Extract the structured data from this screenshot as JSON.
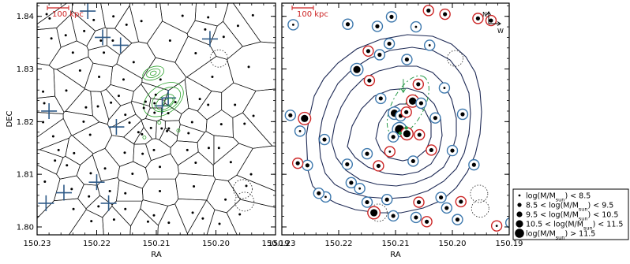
{
  "chart_data": [
    {
      "type": "scatter",
      "panel": "left",
      "xlabel": "RA",
      "ylabel": "DEC",
      "xlim": [
        150.23,
        150.19
      ],
      "ylim": [
        1.7985,
        1.8425
      ],
      "xticks": [
        "150.23",
        "150.22",
        "150.21",
        "150.20",
        "150.19"
      ],
      "yticks": [
        "1.80",
        "1.81",
        "1.82",
        "1.83",
        "1.84"
      ],
      "scalebar": "100 kpc",
      "colors": {
        "frame": "#000000",
        "crosses": "#2e5a87",
        "contours": "#2aa02a",
        "scalebar": "#cc2222",
        "dotted": "#333333"
      },
      "points": [
        [
          150.2284,
          1.8404
        ],
        [
          150.2279,
          1.8396
        ],
        [
          150.2221,
          1.8372
        ],
        [
          150.2205,
          1.8393
        ],
        [
          150.2172,
          1.84
        ],
        [
          150.215,
          1.8384
        ],
        [
          150.2125,
          1.8391
        ],
        [
          150.2056,
          1.8401
        ],
        [
          150.2013,
          1.8398
        ],
        [
          150.1963,
          1.8382
        ],
        [
          150.1938,
          1.8402
        ],
        [
          150.2276,
          1.8358
        ],
        [
          150.2252,
          1.8364
        ],
        [
          150.2193,
          1.8354
        ],
        [
          150.2173,
          1.8354
        ],
        [
          150.2077,
          1.8354
        ],
        [
          150.2018,
          1.8375
        ],
        [
          150.1987,
          1.8361
        ],
        [
          150.224,
          1.8331
        ],
        [
          150.2188,
          1.8331
        ],
        [
          150.2138,
          1.8313
        ],
        [
          150.2034,
          1.833
        ],
        [
          150.1945,
          1.8304
        ],
        [
          150.2228,
          1.8297
        ],
        [
          150.2196,
          1.8285
        ],
        [
          150.2155,
          1.828
        ],
        [
          150.2093,
          1.828
        ],
        [
          150.2101,
          1.8251
        ],
        [
          150.2006,
          1.8285
        ],
        [
          150.229,
          1.8257
        ],
        [
          150.2251,
          1.8259
        ],
        [
          150.2163,
          1.8249
        ],
        [
          150.2118,
          1.8238
        ],
        [
          150.2103,
          1.8235
        ],
        [
          150.2068,
          1.8237
        ],
        [
          150.2027,
          1.8243
        ],
        [
          150.2288,
          1.8235
        ],
        [
          150.2218,
          1.8227
        ],
        [
          150.2198,
          1.8229
        ],
        [
          150.2176,
          1.8236
        ],
        [
          150.2152,
          1.8213
        ],
        [
          150.2121,
          1.8226
        ],
        [
          150.2103,
          1.8217
        ],
        [
          150.208,
          1.8216
        ],
        [
          150.2013,
          1.8232
        ],
        [
          150.1968,
          1.8232
        ],
        [
          150.1937,
          1.8211
        ],
        [
          150.229,
          1.8199
        ],
        [
          150.2222,
          1.82
        ],
        [
          150.2145,
          1.8198
        ],
        [
          150.2109,
          1.8188
        ],
        [
          150.2091,
          1.8187
        ],
        [
          150.2079,
          1.8187
        ],
        [
          150.204,
          1.8199
        ],
        [
          150.1991,
          1.8195
        ],
        [
          150.1952,
          1.8196
        ],
        [
          150.2273,
          1.8172
        ],
        [
          150.2211,
          1.8175
        ],
        [
          150.213,
          1.818
        ],
        [
          150.2124,
          1.8176
        ],
        [
          150.2082,
          1.8182
        ],
        [
          150.2046,
          1.8178
        ],
        [
          150.2264,
          1.8146
        ],
        [
          150.2238,
          1.814
        ],
        [
          150.2153,
          1.8141
        ],
        [
          150.2123,
          1.8139
        ],
        [
          150.2104,
          1.8146
        ],
        [
          150.2048,
          1.8146
        ],
        [
          150.2012,
          1.815
        ],
        [
          150.1995,
          1.815
        ],
        [
          150.227,
          1.8126
        ],
        [
          150.225,
          1.8117
        ],
        [
          150.221,
          1.8102
        ],
        [
          150.2186,
          1.8111
        ],
        [
          150.214,
          1.8101
        ],
        [
          150.2094,
          1.8114
        ],
        [
          150.2034,
          1.8122
        ],
        [
          150.1975,
          1.8123
        ],
        [
          150.1941,
          1.81
        ],
        [
          150.2287,
          1.8086
        ],
        [
          150.2242,
          1.8072
        ],
        [
          150.2213,
          1.8058
        ],
        [
          150.2178,
          1.8068
        ],
        [
          150.2152,
          1.8064
        ],
        [
          150.2094,
          1.8068
        ],
        [
          150.2037,
          1.8077
        ],
        [
          150.1984,
          1.8052
        ],
        [
          150.1949,
          1.8078
        ],
        [
          150.2239,
          1.8034
        ],
        [
          150.2197,
          1.8039
        ],
        [
          150.2152,
          1.8034
        ],
        [
          150.2104,
          1.8022
        ],
        [
          150.2079,
          1.8008
        ],
        [
          150.2039,
          1.8027
        ],
        [
          150.2022,
          1.8016
        ],
        [
          150.196,
          1.8024
        ],
        [
          150.2209,
          1.8011
        ],
        [
          150.2171,
          1.8014
        ],
        [
          150.2114,
          1.801
        ],
        [
          150.1994,
          1.8006
        ]
      ],
      "big_crosses": [
        [
          150.2215,
          1.841
        ],
        [
          150.219,
          1.836
        ],
        [
          150.216,
          1.8345
        ],
        [
          150.201,
          1.8357
        ],
        [
          150.228,
          1.822
        ],
        [
          150.2167,
          1.819
        ],
        [
          150.209,
          1.823
        ],
        [
          150.208,
          1.8245
        ],
        [
          150.2255,
          1.8065
        ],
        [
          150.22,
          1.8085
        ],
        [
          150.218,
          1.8045
        ],
        [
          150.2285,
          1.8045
        ]
      ],
      "dotted_circles": [
        [
          150.1995,
          1.832
        ],
        [
          150.1955,
          1.8072
        ],
        [
          150.1952,
          1.8048
        ]
      ]
    },
    {
      "type": "scatter",
      "panel": "right",
      "xlabel": "RA",
      "ylabel": "",
      "xlim": [
        150.23,
        150.19
      ],
      "ylim": [
        1.7985,
        1.8425
      ],
      "xticks": [
        "150.23",
        "150.22",
        "150.21",
        "150.20",
        "150.19"
      ],
      "scalebar": "100 kpc",
      "compass": {
        "north": "N",
        "west": "W"
      },
      "colors": {
        "frame": "#000000",
        "blue_ring": "#3d78ad",
        "red_ring": "#cc2424",
        "contours": "#1e2a55",
        "green": "#2a9a4a",
        "scalebar": "#cc2222"
      },
      "galaxies": [
        {
          "ra": 150.2042,
          "dec": 1.8411,
          "ring": "red",
          "mass": 9.0
        },
        {
          "ra": 150.2013,
          "dec": 1.8404,
          "ring": "red",
          "mass": 9.0
        },
        {
          "ra": 150.2107,
          "dec": 1.8399,
          "ring": "blue",
          "mass": 9.0
        },
        {
          "ra": 150.2132,
          "dec": 1.8381,
          "ring": "blue",
          "mass": 9.0
        },
        {
          "ra": 150.228,
          "dec": 1.8384,
          "ring": "blue",
          "mass": 8.0
        },
        {
          "ra": 150.2184,
          "dec": 1.8385,
          "ring": "blue",
          "mass": 9.0
        },
        {
          "ra": 150.2064,
          "dec": 1.838,
          "ring": "blue",
          "mass": 8.0
        },
        {
          "ra": 150.1955,
          "dec": 1.8396,
          "ring": "red",
          "mass": 9.0
        },
        {
          "ra": 150.1932,
          "dec": 1.8392,
          "ring": "red",
          "mass": 9.0
        },
        {
          "ra": 150.2111,
          "dec": 1.8348,
          "ring": "blue",
          "mass": 9.0
        },
        {
          "ra": 150.2148,
          "dec": 1.8334,
          "ring": "red",
          "mass": 9.0
        },
        {
          "ra": 150.2128,
          "dec": 1.8327,
          "ring": "blue",
          "mass": 9.0
        },
        {
          "ra": 150.204,
          "dec": 1.8345,
          "ring": "blue",
          "mass": 8.0
        },
        {
          "ra": 150.2168,
          "dec": 1.8299,
          "ring": "blue",
          "mass": 11.0
        },
        {
          "ra": 150.208,
          "dec": 1.8318,
          "ring": "blue",
          "mass": 9.0
        },
        {
          "ra": 150.2146,
          "dec": 1.8278,
          "ring": "red",
          "mass": 9.0
        },
        {
          "ra": 150.206,
          "dec": 1.8271,
          "ring": "red",
          "mass": 9.0
        },
        {
          "ra": 150.2126,
          "dec": 1.8244,
          "ring": "blue",
          "mass": 9.0
        },
        {
          "ra": 150.2014,
          "dec": 1.8264,
          "ring": "blue",
          "mass": 8.0
        },
        {
          "ra": 150.207,
          "dec": 1.8239,
          "ring": "red",
          "mass": 11.0
        },
        {
          "ra": 150.2055,
          "dec": 1.8235,
          "ring": "blue",
          "mass": 9.0
        },
        {
          "ra": 150.2285,
          "dec": 1.8212,
          "ring": "blue",
          "mass": 9.0
        },
        {
          "ra": 150.226,
          "dec": 1.8206,
          "ring": "red",
          "mass": 11.0
        },
        {
          "ra": 150.2102,
          "dec": 1.8216,
          "ring": "blue",
          "mass": 11.0
        },
        {
          "ra": 150.2091,
          "dec": 1.8211,
          "ring": "blue",
          "mass": 9.0
        },
        {
          "ra": 150.2081,
          "dec": 1.8218,
          "ring": "red",
          "mass": 9.0
        },
        {
          "ra": 150.203,
          "dec": 1.8207,
          "ring": "blue",
          "mass": 9.0
        },
        {
          "ra": 150.1982,
          "dec": 1.8214,
          "ring": "blue",
          "mass": 9.0
        },
        {
          "ra": 150.2268,
          "dec": 1.8182,
          "ring": "blue",
          "mass": 8.0
        },
        {
          "ra": 150.2093,
          "dec": 1.8185,
          "ring": "blue",
          "mass": 11.5
        },
        {
          "ra": 150.208,
          "dec": 1.8177,
          "ring": "red",
          "mass": 11.0
        },
        {
          "ra": 150.2104,
          "dec": 1.8171,
          "ring": "blue",
          "mass": 9.0
        },
        {
          "ra": 150.2058,
          "dec": 1.8175,
          "ring": "red",
          "mass": 9.0
        },
        {
          "ra": 150.2225,
          "dec": 1.8166,
          "ring": "blue",
          "mass": 9.0
        },
        {
          "ra": 150.215,
          "dec": 1.8139,
          "ring": "blue",
          "mass": 9.0
        },
        {
          "ra": 150.211,
          "dec": 1.8143,
          "ring": "red",
          "mass": 8.0
        },
        {
          "ra": 150.2037,
          "dec": 1.8146,
          "ring": "red",
          "mass": 9.0
        },
        {
          "ra": 150.2,
          "dec": 1.8145,
          "ring": "blue",
          "mass": 9.0
        },
        {
          "ra": 150.2255,
          "dec": 1.8117,
          "ring": "blue",
          "mass": 9.0
        },
        {
          "ra": 150.2272,
          "dec": 1.8121,
          "ring": "red",
          "mass": 9.0
        },
        {
          "ra": 150.2185,
          "dec": 1.8119,
          "ring": "blue",
          "mass": 9.0
        },
        {
          "ra": 150.213,
          "dec": 1.8116,
          "ring": "red",
          "mass": 9.0
        },
        {
          "ra": 150.2069,
          "dec": 1.8125,
          "ring": "blue",
          "mass": 9.0
        },
        {
          "ra": 150.1962,
          "dec": 1.8118,
          "ring": "blue",
          "mass": 9.0
        },
        {
          "ra": 150.2178,
          "dec": 1.8084,
          "ring": "blue",
          "mass": 9.0
        },
        {
          "ra": 150.2163,
          "dec": 1.8073,
          "ring": "blue",
          "mass": 8.0
        },
        {
          "ra": 150.2223,
          "dec": 1.8057,
          "ring": "blue",
          "mass": 8.0
        },
        {
          "ra": 150.2235,
          "dec": 1.8064,
          "ring": "blue",
          "mass": 9.0
        },
        {
          "ra": 150.215,
          "dec": 1.8047,
          "ring": "blue",
          "mass": 9.0
        },
        {
          "ra": 150.2115,
          "dec": 1.8052,
          "ring": "blue",
          "mass": 9.0
        },
        {
          "ra": 150.2059,
          "dec": 1.8047,
          "ring": "red",
          "mass": 9.0
        },
        {
          "ra": 150.202,
          "dec": 1.8056,
          "ring": "blue",
          "mass": 9.0
        },
        {
          "ra": 150.1985,
          "dec": 1.8048,
          "ring": "red",
          "mass": 9.0
        },
        {
          "ra": 150.201,
          "dec": 1.8036,
          "ring": "blue",
          "mass": 9.0
        },
        {
          "ra": 150.2138,
          "dec": 1.8027,
          "ring": "red",
          "mass": 11.0
        },
        {
          "ra": 150.2104,
          "dec": 1.8021,
          "ring": "blue",
          "mass": 9.0
        },
        {
          "ra": 150.2064,
          "dec": 1.8018,
          "ring": "blue",
          "mass": 9.0
        },
        {
          "ra": 150.2045,
          "dec": 1.801,
          "ring": "red",
          "mass": 9.0
        },
        {
          "ra": 150.1991,
          "dec": 1.8014,
          "ring": "blue",
          "mass": 9.0
        },
        {
          "ra": 150.1922,
          "dec": 1.8002,
          "ring": "red",
          "mass": 8.0
        },
        {
          "ra": 150.1897,
          "dec": 1.8008,
          "ring": "blue",
          "mass": 8.0
        }
      ],
      "dotted_circles": [
        [
          150.1995,
          1.832
        ],
        [
          150.213,
          1.8027
        ],
        [
          150.1953,
          1.8063
        ],
        [
          150.1951,
          1.8035
        ]
      ],
      "green_points": [
        [
          150.2081,
          1.8188
        ],
        [
          150.2092,
          1.8178
        ]
      ],
      "legend": {
        "position": "lower-right (outside)",
        "entries": [
          {
            "pre": "log(M/M",
            "sub": "sun",
            "post": ") < 8.5"
          },
          {
            "pre": "8.5 < log(M/M",
            "sub": "sun",
            "post": ") < 9.5"
          },
          {
            "pre": "9.5 < log(M/M",
            "sub": "sun",
            "post": ") < 10.5"
          },
          {
            "pre": "10.5 < log(M/M",
            "sub": "sun",
            "post": ") < 11.5"
          },
          {
            "pre": "log(M/M",
            "sub": "sun",
            "post": ") > 11.5"
          }
        ]
      }
    }
  ]
}
